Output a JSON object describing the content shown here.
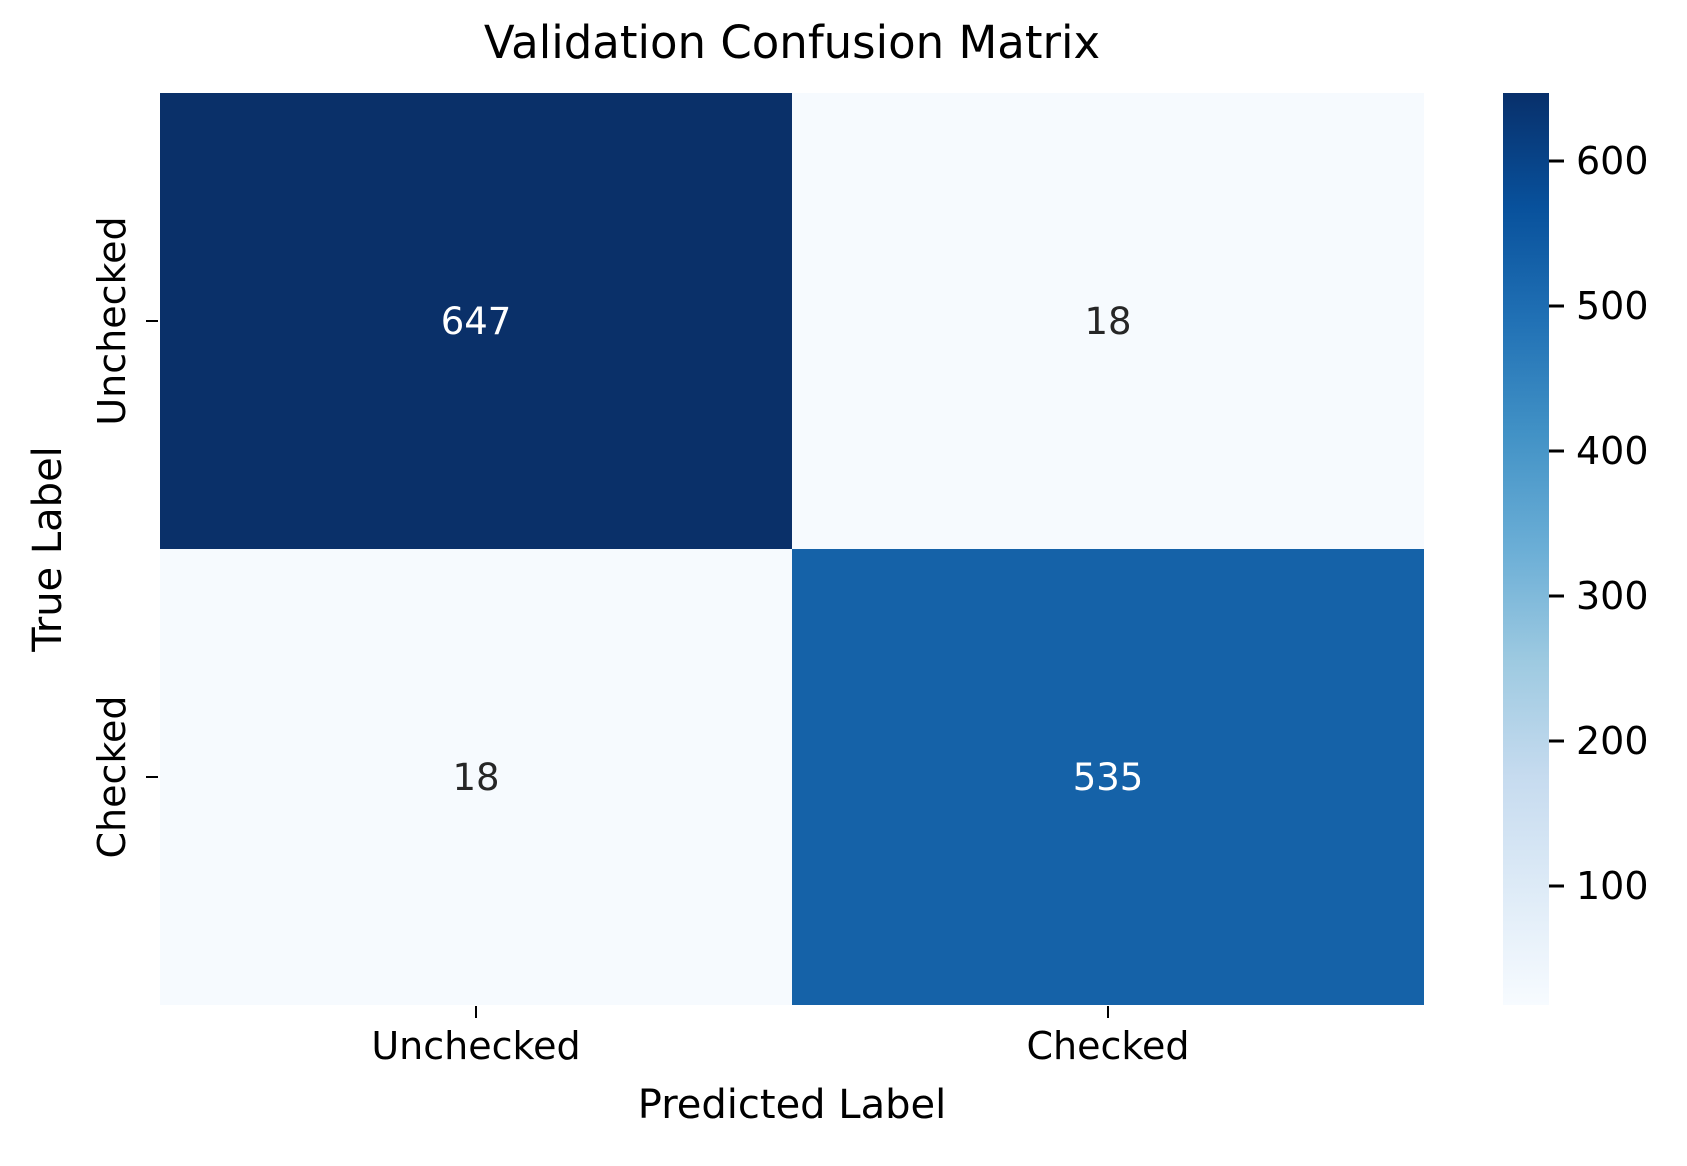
{
  "chart_data": {
    "type": "heatmap",
    "title": "Validation Confusion Matrix",
    "xlabel": "Predicted Label",
    "ylabel": "True Label",
    "x_categories": [
      "Unchecked",
      "Checked"
    ],
    "y_categories": [
      "Unchecked",
      "Checked"
    ],
    "matrix": [
      [
        647,
        18
      ],
      [
        18,
        535
      ]
    ],
    "vmin": 18,
    "vmax": 647,
    "colormap": "Blues",
    "grid": false,
    "legend_position": "right-colorbar",
    "colorbar_ticks": [
      100,
      200,
      300,
      400,
      500,
      600
    ],
    "cells": [
      {
        "true_label": "Unchecked",
        "predicted_label": "Unchecked",
        "value": "647",
        "bg": "#0a3069",
        "fg": "#ffffff"
      },
      {
        "true_label": "Unchecked",
        "predicted_label": "Checked",
        "value": "18",
        "bg": "#f6fafe",
        "fg": "#262626"
      },
      {
        "true_label": "Checked",
        "predicted_label": "Unchecked",
        "value": "18",
        "bg": "#f6fafe",
        "fg": "#262626"
      },
      {
        "true_label": "Checked",
        "predicted_label": "Checked",
        "value": "535",
        "bg": "#1562a8",
        "fg": "#ffffff"
      }
    ],
    "colors": {
      "cmap_low": "#f7fbff",
      "cmap_high": "#08306b",
      "annotation_on_dark": "#ffffff",
      "annotation_on_light": "#262626",
      "axis_text": "#000000"
    }
  }
}
